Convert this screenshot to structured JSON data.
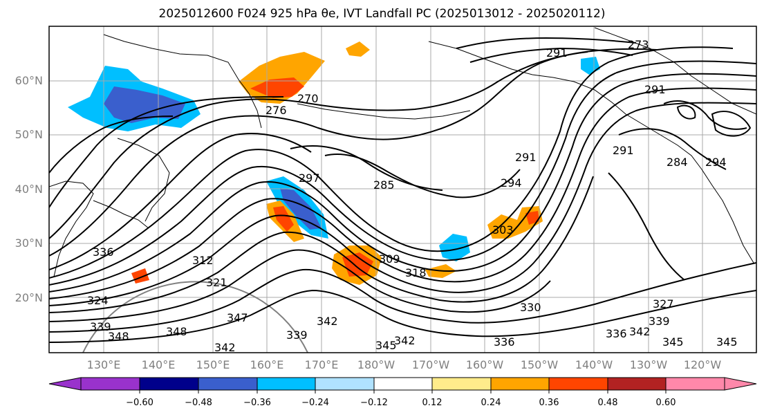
{
  "title": "2025012600 F024 925 hPa θe, IVT Landfall PC (2025013012 - 2025020112)",
  "map": {
    "lat_labels": [
      "60°N",
      "50°N",
      "40°N",
      "30°N",
      "20°N"
    ],
    "lon_labels": [
      "130°E",
      "140°E",
      "150°E",
      "160°E",
      "170°E",
      "180°W",
      "170°W",
      "160°W",
      "150°W",
      "140°W",
      "130°W",
      "120°W"
    ],
    "theta_e_contour_labels": [
      "291",
      "273",
      "270",
      "276",
      "291",
      "291",
      "294",
      "291",
      "284",
      "285",
      "294",
      "303",
      "297",
      "309",
      "318",
      "312",
      "321",
      "324",
      "336",
      "330",
      "327",
      "339",
      "339",
      "342",
      "339",
      "342",
      "345",
      "342",
      "336",
      "336",
      "342",
      "345",
      "345",
      "348",
      "348",
      "347"
    ]
  },
  "colorbar": {
    "ticks": [
      "−0.60",
      "−0.48",
      "−0.36",
      "−0.24",
      "−0.12",
      "0.12",
      "0.24",
      "0.36",
      "0.48",
      "0.60"
    ],
    "colors": [
      "#9932cc",
      "#00008b",
      "#3a5fcd",
      "#00bfff",
      "#b0e2ff",
      "#ffffff",
      "#ffec8b",
      "#ffa500",
      "#ff4500",
      "#b22222",
      "#ff88aa"
    ]
  }
}
